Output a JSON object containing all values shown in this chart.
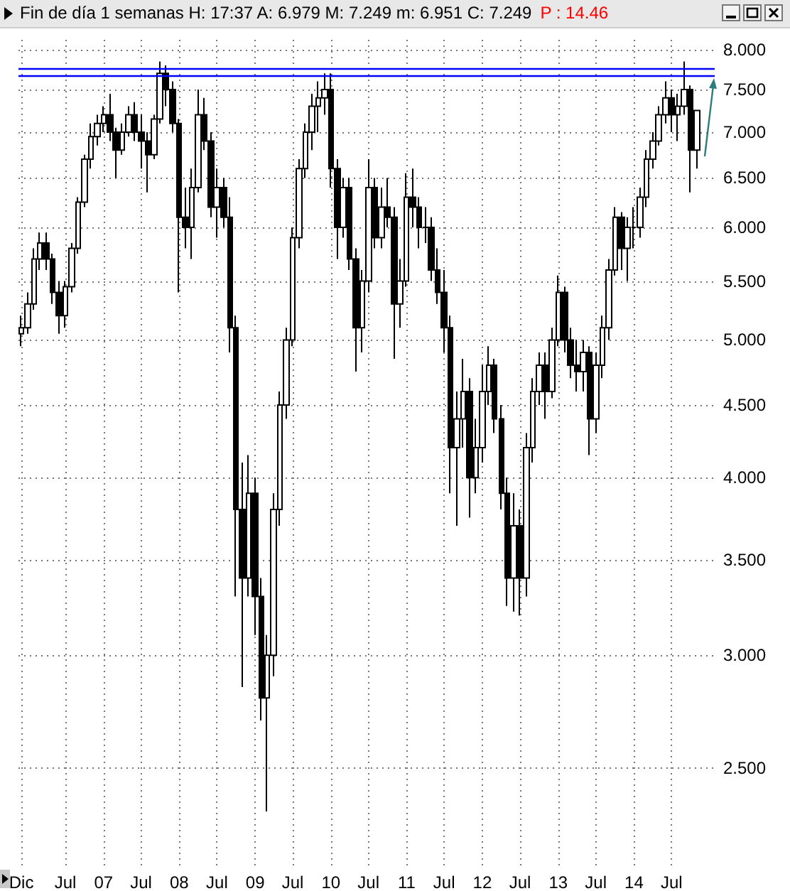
{
  "chart_data": {
    "type": "candlestick",
    "title": "Fin de día 1 semanas  H: 17:37  A: 6.979  M: 7.249  m: 6.951  C: 7.249",
    "annotations": [
      "P : 14.46"
    ],
    "color": "#000000",
    "log": "y",
    "grid": true,
    "xlim": [
      "2005-11-17",
      "2015-01-25"
    ],
    "xticks": [
      {
        "value": "2005-12",
        "label": "Dic"
      },
      {
        "value": "2006-07",
        "label": "Jul"
      },
      {
        "value": "2007-01",
        "label": "07"
      },
      {
        "value": "2007-07",
        "label": "Jul"
      },
      {
        "value": "2008-01",
        "label": "08"
      },
      {
        "value": "2008-07",
        "label": "Jul"
      },
      {
        "value": "2009-01",
        "label": "09"
      },
      {
        "value": "2009-07",
        "label": "Jul"
      },
      {
        "value": "2010-01",
        "label": "10"
      },
      {
        "value": "2010-07",
        "label": "Jul"
      },
      {
        "value": "2011-01",
        "label": "11"
      },
      {
        "value": "2011-07",
        "label": "Jul"
      },
      {
        "value": "2012-01",
        "label": "12"
      },
      {
        "value": "2012-07",
        "label": "Jul"
      },
      {
        "value": "2013-01",
        "label": "13"
      },
      {
        "value": "2013-07",
        "label": "Jul"
      },
      {
        "value": "2014-01",
        "label": "14"
      },
      {
        "value": "2014-07",
        "label": "Jul"
      }
    ],
    "ylim": [
      2.13,
      8.13
    ],
    "yticks": [
      {
        "value": 2.5,
        "label": "2.500"
      },
      {
        "value": 3,
        "label": "3.000"
      },
      {
        "value": 3.5,
        "label": "3.500"
      },
      {
        "value": 4,
        "label": "4.000"
      },
      {
        "value": 4.5,
        "label": "4.500"
      },
      {
        "value": 5,
        "label": "5.000"
      },
      {
        "value": 5.5,
        "label": "5.500"
      },
      {
        "value": 6,
        "label": "6.000"
      },
      {
        "value": 6.5,
        "label": "6.500"
      },
      {
        "value": 7,
        "label": "7.000"
      },
      {
        "value": 7.5,
        "label": "7.500"
      },
      {
        "value": 8,
        "label": "8.000"
      }
    ],
    "ref_lines": [
      {
        "axis": "y",
        "value": 7.76,
        "color": "#0000ff"
      },
      {
        "axis": "y",
        "value": 7.67,
        "color": "#0000ff"
      }
    ],
    "x": [
      "2005-12",
      "2006-01",
      "2006-02",
      "2006-03",
      "2006-04",
      "2006-05",
      "2006-06",
      "2006-07",
      "2006-08",
      "2006-09",
      "2006-10",
      "2006-11",
      "2006-12",
      "2007-01",
      "2007-02",
      "2007-03",
      "2007-04",
      "2007-05",
      "2007-06",
      "2007-07",
      "2007-08",
      "2007-09",
      "2007-10",
      "2007-11",
      "2007-12",
      "2008-01",
      "2008-02",
      "2008-03",
      "2008-04",
      "2008-05",
      "2008-06",
      "2008-07",
      "2008-08",
      "2008-09",
      "2008-10",
      "2008-11",
      "2008-12",
      "2009-01",
      "2009-02",
      "2009-03",
      "2009-04",
      "2009-05",
      "2009-06",
      "2009-07",
      "2009-08",
      "2009-09",
      "2009-10",
      "2009-11",
      "2009-12",
      "2010-01",
      "2010-02",
      "2010-03",
      "2010-04",
      "2010-05",
      "2010-06",
      "2010-07",
      "2010-08",
      "2010-09",
      "2010-10",
      "2010-11",
      "2010-12",
      "2011-01",
      "2011-02",
      "2011-03",
      "2011-04",
      "2011-05",
      "2011-06",
      "2011-07",
      "2011-08",
      "2011-09",
      "2011-10",
      "2011-11",
      "2011-12",
      "2012-01",
      "2012-02",
      "2012-03",
      "2012-04",
      "2012-05",
      "2012-06",
      "2012-07",
      "2012-08",
      "2012-09",
      "2012-10",
      "2012-11",
      "2012-12",
      "2013-01",
      "2013-02",
      "2013-03",
      "2013-04",
      "2013-05",
      "2013-06",
      "2013-07",
      "2013-08",
      "2013-09",
      "2013-10",
      "2013-11",
      "2013-12",
      "2014-01",
      "2014-02",
      "2014-03",
      "2014-04",
      "2014-05",
      "2014-06",
      "2014-07",
      "2014-08",
      "2014-09",
      "2014-10",
      "2014-11"
    ],
    "ohlc": [
      [
        5.05,
        5.2,
        4.95,
        5.1
      ],
      [
        5.1,
        5.4,
        5.05,
        5.3
      ],
      [
        5.3,
        5.8,
        5.25,
        5.7
      ],
      [
        5.7,
        5.95,
        5.6,
        5.85
      ],
      [
        5.85,
        5.95,
        5.6,
        5.7
      ],
      [
        5.7,
        5.75,
        5.3,
        5.4
      ],
      [
        5.4,
        5.5,
        5.05,
        5.2
      ],
      [
        5.2,
        5.5,
        5.1,
        5.45
      ],
      [
        5.45,
        5.85,
        5.4,
        5.8
      ],
      [
        5.8,
        6.3,
        5.75,
        6.25
      ],
      [
        6.25,
        6.75,
        6.2,
        6.7
      ],
      [
        6.7,
        7.1,
        6.6,
        6.95
      ],
      [
        6.95,
        7.2,
        6.85,
        7.1
      ],
      [
        7.1,
        7.3,
        7.0,
        7.2
      ],
      [
        7.2,
        7.45,
        6.9,
        7.0
      ],
      [
        7.0,
        7.05,
        6.5,
        6.8
      ],
      [
        6.8,
        7.1,
        6.75,
        7.0
      ],
      [
        7.0,
        7.3,
        6.95,
        7.2
      ],
      [
        7.2,
        7.35,
        6.9,
        7.0
      ],
      [
        7.0,
        7.2,
        6.6,
        6.9
      ],
      [
        6.9,
        7.0,
        6.35,
        6.75
      ],
      [
        6.75,
        7.2,
        6.7,
        7.15
      ],
      [
        7.15,
        7.85,
        7.1,
        7.7
      ],
      [
        7.7,
        7.8,
        7.3,
        7.5
      ],
      [
        7.5,
        7.6,
        7.0,
        7.1
      ],
      [
        7.1,
        7.15,
        5.4,
        6.1
      ],
      [
        6.1,
        6.4,
        5.8,
        6.0
      ],
      [
        6.0,
        6.6,
        5.7,
        6.4
      ],
      [
        6.4,
        7.5,
        6.35,
        7.2
      ],
      [
        7.2,
        7.4,
        6.8,
        6.9
      ],
      [
        6.9,
        7.0,
        6.1,
        6.2
      ],
      [
        6.2,
        6.6,
        5.9,
        6.4
      ],
      [
        6.4,
        6.5,
        6.0,
        6.1
      ],
      [
        6.1,
        6.3,
        4.9,
        5.1
      ],
      [
        5.1,
        5.2,
        3.3,
        3.8
      ],
      [
        3.8,
        4.1,
        2.85,
        3.4
      ],
      [
        3.4,
        4.15,
        3.3,
        3.9
      ],
      [
        3.9,
        4.0,
        3.1,
        3.3
      ],
      [
        3.3,
        3.4,
        2.7,
        2.8
      ],
      [
        2.8,
        3.1,
        2.33,
        3.0
      ],
      [
        3.0,
        3.9,
        2.9,
        3.8
      ],
      [
        3.8,
        4.6,
        3.7,
        4.5
      ],
      [
        4.5,
        5.1,
        4.4,
        5.0
      ],
      [
        5.0,
        6.0,
        4.95,
        5.9
      ],
      [
        5.9,
        6.7,
        5.8,
        6.6
      ],
      [
        6.6,
        7.1,
        6.5,
        7.0
      ],
      [
        7.0,
        7.45,
        6.8,
        7.3
      ],
      [
        7.3,
        7.6,
        7.0,
        7.4
      ],
      [
        7.4,
        7.7,
        7.2,
        7.5
      ],
      [
        7.5,
        7.7,
        6.4,
        6.6
      ],
      [
        6.6,
        6.7,
        5.7,
        6.0
      ],
      [
        6.0,
        6.5,
        5.9,
        6.4
      ],
      [
        6.4,
        6.5,
        5.6,
        5.7
      ],
      [
        5.7,
        5.8,
        4.75,
        5.1
      ],
      [
        5.1,
        5.6,
        4.9,
        5.5
      ],
      [
        5.5,
        6.7,
        5.4,
        6.4
      ],
      [
        6.4,
        6.5,
        5.8,
        5.9
      ],
      [
        5.9,
        6.4,
        5.8,
        6.2
      ],
      [
        6.2,
        6.5,
        6.0,
        6.1
      ],
      [
        6.1,
        6.2,
        4.85,
        5.3
      ],
      [
        5.3,
        5.7,
        5.1,
        5.5
      ],
      [
        5.5,
        6.55,
        5.45,
        6.3
      ],
      [
        6.3,
        6.6,
        6.0,
        6.2
      ],
      [
        6.2,
        6.3,
        5.8,
        6.0
      ],
      [
        6.0,
        6.2,
        5.85,
        6.0
      ],
      [
        6.0,
        6.1,
        5.5,
        5.6
      ],
      [
        5.6,
        5.8,
        5.3,
        5.4
      ],
      [
        5.4,
        5.6,
        4.9,
        5.1
      ],
      [
        5.1,
        5.2,
        3.9,
        4.2
      ],
      [
        4.2,
        4.6,
        3.7,
        4.4
      ],
      [
        4.4,
        4.85,
        4.2,
        4.6
      ],
      [
        4.6,
        4.7,
        3.75,
        4.0
      ],
      [
        4.0,
        4.4,
        3.9,
        4.2
      ],
      [
        4.2,
        4.8,
        4.1,
        4.6
      ],
      [
        4.6,
        4.95,
        4.5,
        4.8
      ],
      [
        4.8,
        4.85,
        4.3,
        4.4
      ],
      [
        4.4,
        4.5,
        3.8,
        3.9
      ],
      [
        3.9,
        4.0,
        3.25,
        3.4
      ],
      [
        3.4,
        3.9,
        3.22,
        3.7
      ],
      [
        3.7,
        3.8,
        3.2,
        3.4
      ],
      [
        3.4,
        4.3,
        3.3,
        4.2
      ],
      [
        4.2,
        4.7,
        4.1,
        4.6
      ],
      [
        4.6,
        4.9,
        4.5,
        4.8
      ],
      [
        4.8,
        4.9,
        4.4,
        4.6
      ],
      [
        4.6,
        5.1,
        4.55,
        5.0
      ],
      [
        5.0,
        5.55,
        4.95,
        5.4
      ],
      [
        5.4,
        5.45,
        4.9,
        5.0
      ],
      [
        5.0,
        5.1,
        4.7,
        4.8
      ],
      [
        4.8,
        5.0,
        4.6,
        4.75
      ],
      [
        4.75,
        5.0,
        4.6,
        4.9
      ],
      [
        4.9,
        4.95,
        4.15,
        4.4
      ],
      [
        4.4,
        4.9,
        4.3,
        4.8
      ],
      [
        4.8,
        5.2,
        4.7,
        5.1
      ],
      [
        5.1,
        5.7,
        5.0,
        5.6
      ],
      [
        5.6,
        6.2,
        5.55,
        6.1
      ],
      [
        6.1,
        6.15,
        5.6,
        5.8
      ],
      [
        5.8,
        6.1,
        5.5,
        6.0
      ],
      [
        6.0,
        6.2,
        5.8,
        6.0
      ],
      [
        6.0,
        6.4,
        5.9,
        6.3
      ],
      [
        6.3,
        6.8,
        6.2,
        6.7
      ],
      [
        6.7,
        7.0,
        6.6,
        6.9
      ],
      [
        6.9,
        7.3,
        6.85,
        7.2
      ],
      [
        7.2,
        7.6,
        7.1,
        7.4
      ],
      [
        7.4,
        7.5,
        7.0,
        7.2
      ],
      [
        7.2,
        7.45,
        6.9,
        7.3
      ],
      [
        7.3,
        7.85,
        7.2,
        7.5
      ],
      [
        7.5,
        7.55,
        6.35,
        6.8
      ],
      [
        6.8,
        7.25,
        6.6,
        7.25
      ]
    ]
  }
}
